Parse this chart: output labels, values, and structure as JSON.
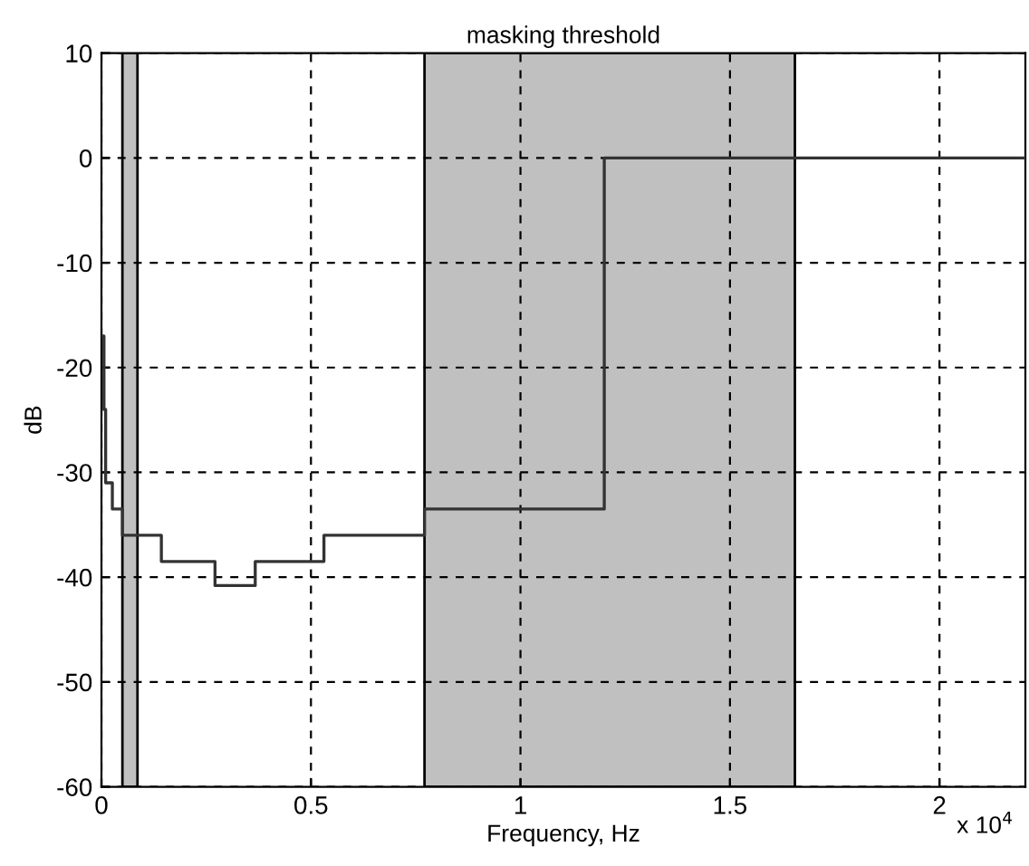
{
  "chart_data": {
    "type": "step",
    "title": "masking threshold",
    "xlabel": "Frequency, Hz",
    "ylabel": "dB",
    "x": [
      0,
      0.006,
      0.01,
      0.026,
      0.05,
      0.143,
      0.271,
      0.367,
      0.531,
      0.771,
      1.2,
      2.205
    ],
    "series": [
      {
        "color": "#333333",
        "values": [
          -17,
          -24,
          -31,
          -33.5,
          -36,
          -38.5,
          -40.8,
          -38.5,
          -36,
          -33.5,
          0,
          0
        ]
      }
    ],
    "bands": [
      {
        "axis": "x",
        "from": 0.05,
        "to": 0.086,
        "color": "#c0c0c0"
      },
      {
        "axis": "x",
        "from": 0.771,
        "to": 1.655,
        "color": "#c0c0c0"
      }
    ],
    "xlim": [
      0,
      2.205
    ],
    "xticks": [
      0,
      0.5,
      1,
      1.5,
      2
    ],
    "ylim": [
      -60,
      10
    ],
    "yticks": [
      -60,
      -50,
      -40,
      -30,
      -20,
      -10,
      0,
      10
    ],
    "annotations": [
      "x 10$^{4}$"
    ],
    "grid": true,
    "line_style": "solid",
    "marker": "none",
    "legend": false
  }
}
